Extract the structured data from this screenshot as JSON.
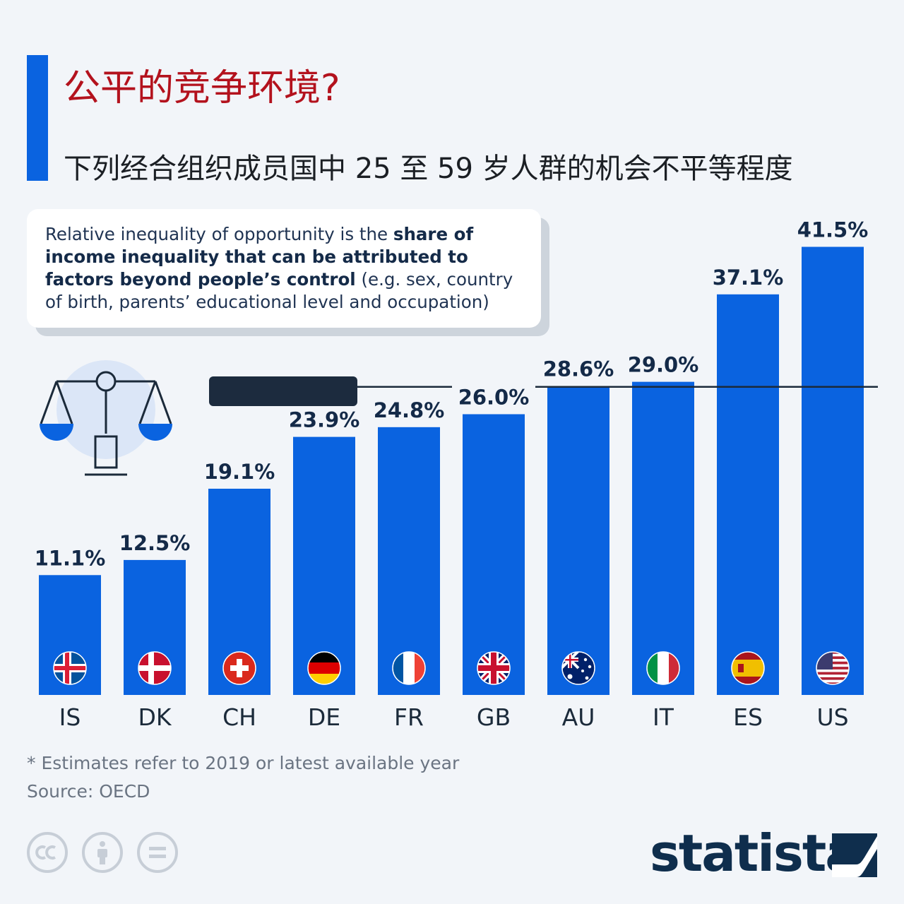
{
  "header": {
    "title": "公平的竞争环境?",
    "subtitle": "下列经合组织成员国中 25 至 59 岁人群的机会不平等程度"
  },
  "note": {
    "text_1": "Relative inequality of opportunity is the ",
    "bold": "share of income inequality that can be attributed to factors beyond people’s control",
    "text_2": " (e.g. sex, country of birth, parents’ educational level and occupation)"
  },
  "footer": {
    "footnote": "* Estimates refer to 2019 or latest available year",
    "source": "Source: OECD",
    "brand": "statista"
  },
  "colors": {
    "bar": "#0a63e0",
    "title": "#b3121d",
    "value_label": "#142a48",
    "average_line": "#1b2a3a",
    "redaction": "#1c2b3e"
  },
  "chart_data": {
    "type": "bar",
    "title": "",
    "xlabel": "",
    "ylabel": "",
    "ylim": [
      0,
      45
    ],
    "grid": false,
    "categories": [
      "IS",
      "DK",
      "CH",
      "DE",
      "FR",
      "GB",
      "AU",
      "IT",
      "ES",
      "US"
    ],
    "values": [
      11.1,
      12.5,
      19.1,
      23.9,
      24.8,
      26.0,
      28.6,
      29.0,
      37.1,
      41.5
    ],
    "value_labels": [
      "11.1%",
      "12.5%",
      "19.1%",
      "23.9%",
      "24.8%",
      "26.0%",
      "28.6%",
      "29.0%",
      "37.1%",
      "41.5%"
    ],
    "flag_icons": [
      "iceland-flag-icon",
      "denmark-flag-icon",
      "switzerland-flag-icon",
      "germany-flag-icon",
      "france-flag-icon",
      "uk-flag-icon",
      "australia-flag-icon",
      "italy-flag-icon",
      "spain-flag-icon",
      "usa-flag-icon"
    ],
    "reference_line": {
      "value": 28.6,
      "label_redacted": true
    }
  }
}
